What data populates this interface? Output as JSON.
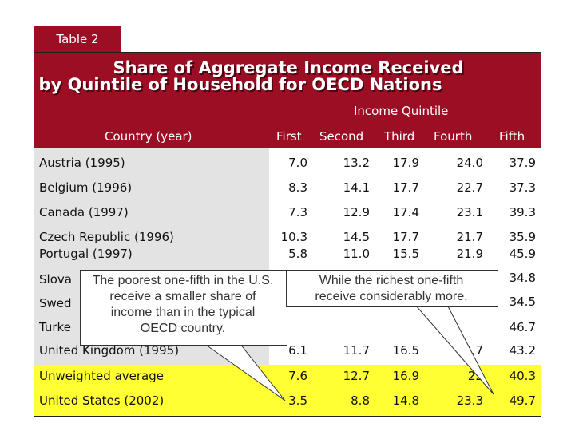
{
  "tab_label": "Table 2",
  "title_line1": "Share of Aggregate Income Received",
  "title_line2": "by Quintile of Household for OECD Nations",
  "group_header": "Income Quintile",
  "columns": [
    "Country (year)",
    "First",
    "Second",
    "Third",
    "Fourth",
    "Fifth"
  ],
  "rows": [
    {
      "country": "Austria (1995)",
      "values": [
        "7.0",
        "13.2",
        "17.9",
        "24.0",
        "37.9"
      ]
    },
    {
      "country": "Belgium (1996)",
      "values": [
        "8.3",
        "14.1",
        "17.7",
        "22.7",
        "37.3"
      ]
    },
    {
      "country": "Canada (1997)",
      "values": [
        "7.3",
        "12.9",
        "17.4",
        "23.1",
        "39.3"
      ]
    },
    {
      "country": "Czech Republic (1996)",
      "values": [
        "10.3",
        "14.5",
        "17.7",
        "21.7",
        "35.9"
      ]
    },
    {
      "country": "Portugal (1997)",
      "values": [
        "5.8",
        "11.0",
        "15.5",
        "21.9",
        "45.9"
      ]
    },
    {
      "country": "Slova",
      "values": [
        "34.8"
      ]
    },
    {
      "country": "Swed",
      "values": [
        "34.5"
      ]
    },
    {
      "country": "Turke",
      "values": [
        "46.7"
      ]
    },
    {
      "country": "United Kingdom (1995)",
      "values": [
        "6.1",
        "11.7",
        "16.5",
        "2.7",
        "43.2"
      ]
    },
    {
      "country": "Unweighted average",
      "values": [
        "7.6",
        "12.7",
        "16.9",
        "22",
        "40.3"
      ]
    },
    {
      "country": "United States (2002)",
      "values": [
        "3.5",
        "8.8",
        "14.8",
        "23.3",
        "49.7"
      ]
    }
  ],
  "callout_left": [
    "The poorest one-fifth in the U.S.",
    "receive a smaller share of",
    "income than in the typical",
    "OECD country."
  ],
  "callout_right": [
    "While the richest one-fifth",
    "receive considerably more."
  ],
  "colors": {
    "header": "#9b0e24",
    "left_shade": "#e3e3e3",
    "highlight": "#ffff33"
  }
}
